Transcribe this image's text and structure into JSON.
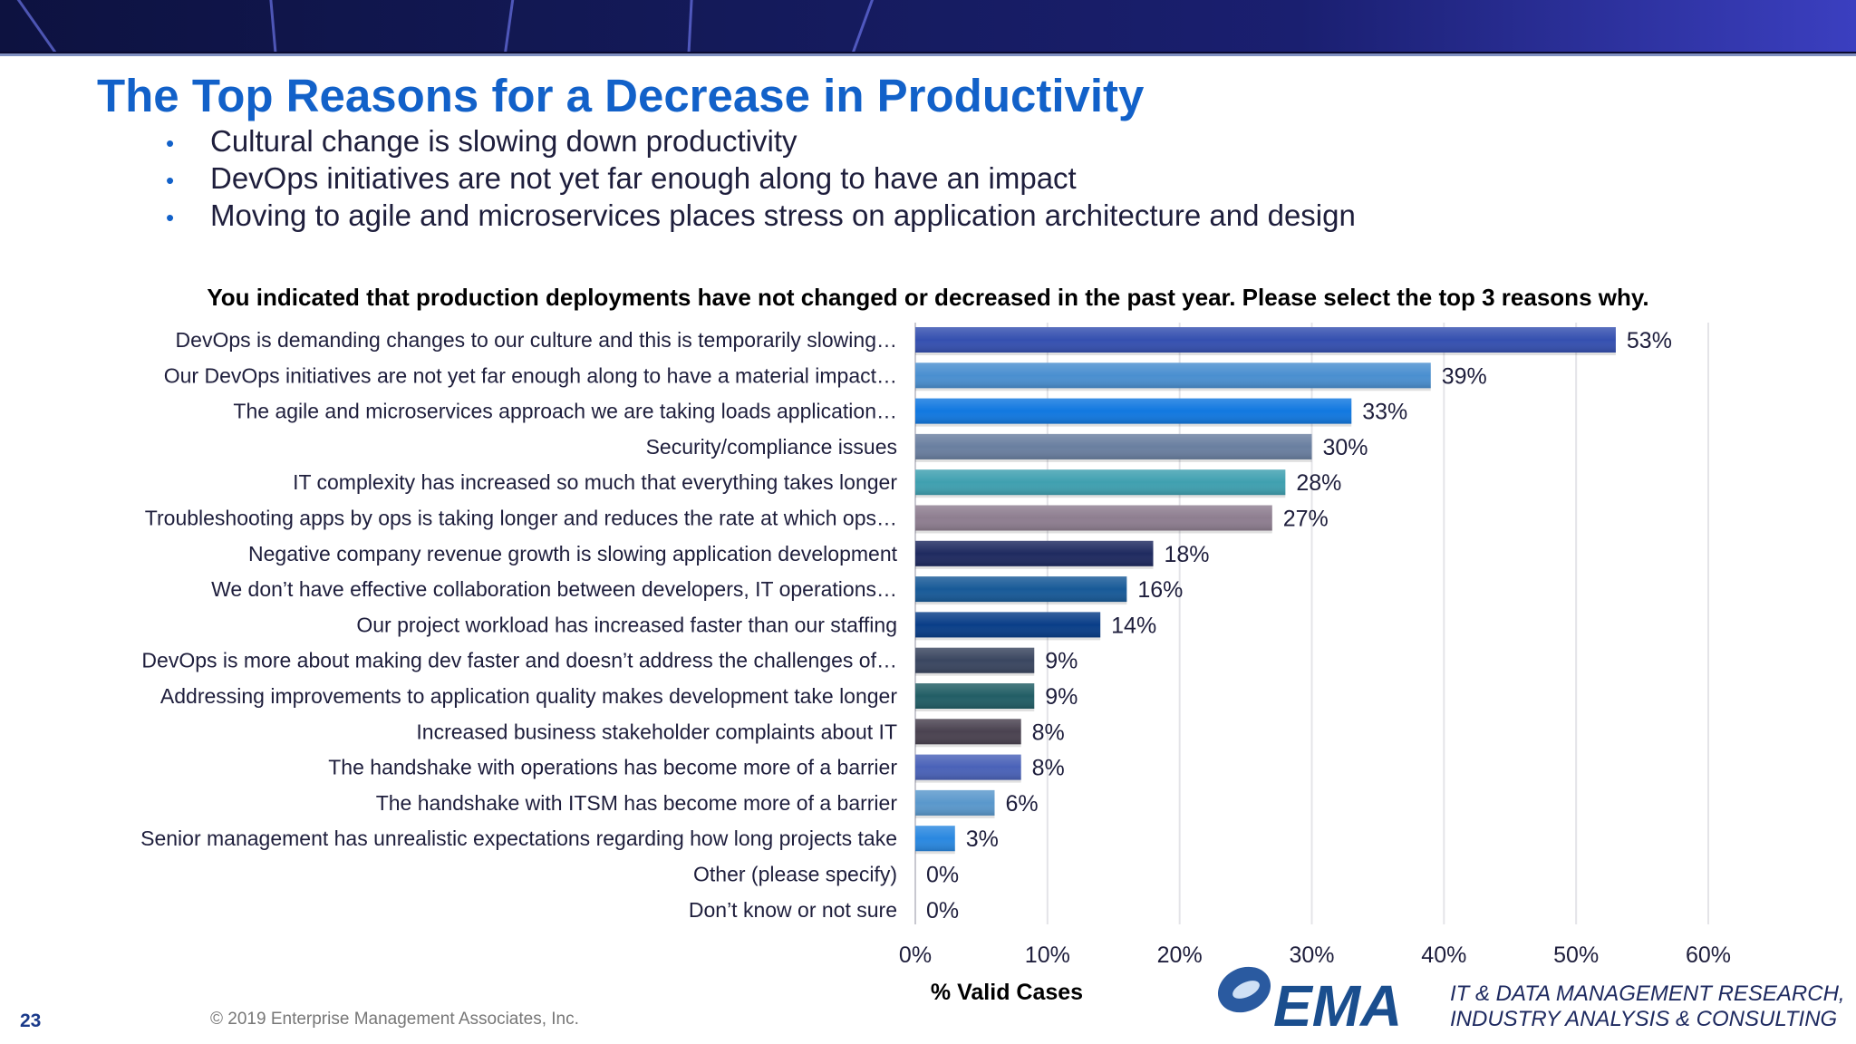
{
  "header": {
    "title": "The Top Reasons for a Decrease in Productivity",
    "bullets": [
      "Cultural change is slowing down productivity",
      "DevOps initiatives are not yet far enough along to have an impact",
      "Moving to agile and microservices places stress on application architecture and design"
    ],
    "bullet_glyph": "•"
  },
  "chart_data": {
    "type": "bar",
    "orientation": "horizontal",
    "title": "You indicated that production deployments have not changed or decreased in the past year. Please select the top 3 reasons why.",
    "xlabel": "% Valid Cases",
    "xlim": [
      0,
      60
    ],
    "xticks": [
      "0%",
      "10%",
      "20%",
      "30%",
      "40%",
      "50%",
      "60%"
    ],
    "grid": true,
    "categories": [
      "DevOps is demanding changes to our culture and this is temporarily slowing…",
      "Our DevOps initiatives are not yet far enough along to have a material impact…",
      "The agile and microservices approach we are taking loads application…",
      "Security/compliance issues",
      "IT complexity has increased so much that everything takes longer",
      "Troubleshooting apps by ops is taking longer and reduces the rate at which ops…",
      "Negative company revenue growth is slowing application development",
      "We don’t have effective collaboration between developers, IT operations…",
      "Our project workload has increased faster than our staffing",
      "DevOps is more about making dev faster and doesn’t address the challenges of…",
      "Addressing improvements to application quality makes development take longer",
      "Increased business stakeholder complaints about IT",
      "The handshake with operations has become more of a barrier",
      "The handshake with ITSM has become more of a barrier",
      "Senior management has unrealistic expectations regarding how long projects take",
      "Other (please specify)",
      "Don’t know or not sure"
    ],
    "values": [
      53,
      39,
      33,
      30,
      28,
      27,
      18,
      16,
      14,
      9,
      9,
      8,
      8,
      6,
      3,
      0,
      0
    ],
    "value_labels": [
      "53%",
      "39%",
      "33%",
      "30%",
      "28%",
      "27%",
      "18%",
      "16%",
      "14%",
      "9%",
      "9%",
      "8%",
      "8%",
      "6%",
      "3%",
      "0%",
      "0%"
    ],
    "colors": [
      "#3550b0",
      "#4a8fd0",
      "#1178e0",
      "#6a7fa0",
      "#3fa0b0",
      "#8e7e90",
      "#1f2a60",
      "#185a98",
      "#0a3e88",
      "#3a4660",
      "#225e66",
      "#4a4250",
      "#4a62b8",
      "#5a98cc",
      "#2a88e0",
      "#cccccc",
      "#cccccc"
    ]
  },
  "footer": {
    "page_number": "23",
    "copyright": "© 2019 Enterprise Management Associates, Inc.",
    "logo_text": "EMA",
    "tagline_line1": "IT & DATA MANAGEMENT RESEARCH,",
    "tagline_line2": "INDUSTRY ANALYSIS & CONSULTING"
  }
}
